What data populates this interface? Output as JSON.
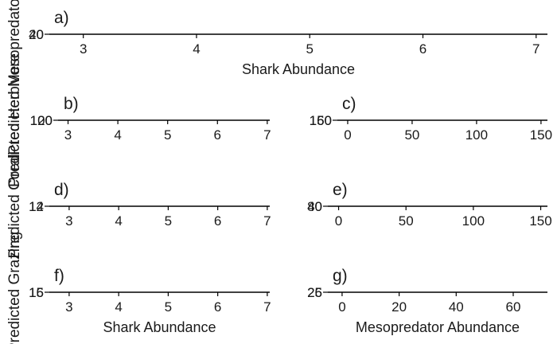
{
  "chart_data": [
    {
      "type": "line",
      "panel": "a)",
      "xlabel": "Shark Abundance",
      "ylabel": "Predicted Mesopredator Abundance",
      "xlim": [
        2.7,
        7.1
      ],
      "xticks": [
        3,
        4,
        5,
        6,
        7
      ],
      "ylim": [
        20,
        40
      ],
      "yticks": [
        "40",
        "20"
      ],
      "series": []
    },
    {
      "type": "line",
      "panel": "b)",
      "xlabel": "",
      "ylabel": "Predicted Herbivore",
      "xlim": [
        2.8,
        7.05
      ],
      "xticks": [
        3,
        4,
        5,
        6,
        7
      ],
      "ylim": [
        100,
        120
      ],
      "yticks": [
        "120",
        "100"
      ],
      "series": []
    },
    {
      "type": "line",
      "panel": "c)",
      "xlabel": "",
      "ylabel": "",
      "xlim": [
        -8,
        155
      ],
      "xticks": [
        0,
        50,
        100,
        150
      ],
      "ylim": [
        150,
        160
      ],
      "yticks": [
        "160",
        "150"
      ],
      "series": []
    },
    {
      "type": "line",
      "panel": "d)",
      "xlabel": "",
      "ylabel": "Predicted Coral",
      "xlim": [
        2.6,
        7.05
      ],
      "xticks": [
        3,
        4,
        5,
        6,
        7
      ],
      "ylim": [
        12,
        14
      ],
      "yticks": [
        "14",
        "12"
      ],
      "series": []
    },
    {
      "type": "line",
      "panel": "e)",
      "xlabel": "",
      "ylabel": "",
      "xlim": [
        -8,
        155
      ],
      "xticks": [
        0,
        50,
        100,
        150
      ],
      "ylim": [
        40,
        80
      ],
      "yticks": [
        "80",
        "40"
      ],
      "series": []
    },
    {
      "type": "line",
      "panel": "f)",
      "xlabel": "Shark Abundance",
      "ylabel": "Predicted Grazing",
      "xlim": [
        2.6,
        7.05
      ],
      "xticks": [
        3,
        4,
        5,
        6,
        7
      ],
      "ylim": [
        15,
        16
      ],
      "yticks": [
        "16",
        "15"
      ],
      "series": []
    },
    {
      "type": "line",
      "panel": "g)",
      "xlabel": "Mesopredator Abundance",
      "ylabel": "",
      "xlim": [
        -5,
        72
      ],
      "xticks": [
        0,
        20,
        40,
        60
      ],
      "ylim": [
        25,
        26
      ],
      "yticks": [
        "26",
        "25"
      ],
      "series": []
    }
  ]
}
